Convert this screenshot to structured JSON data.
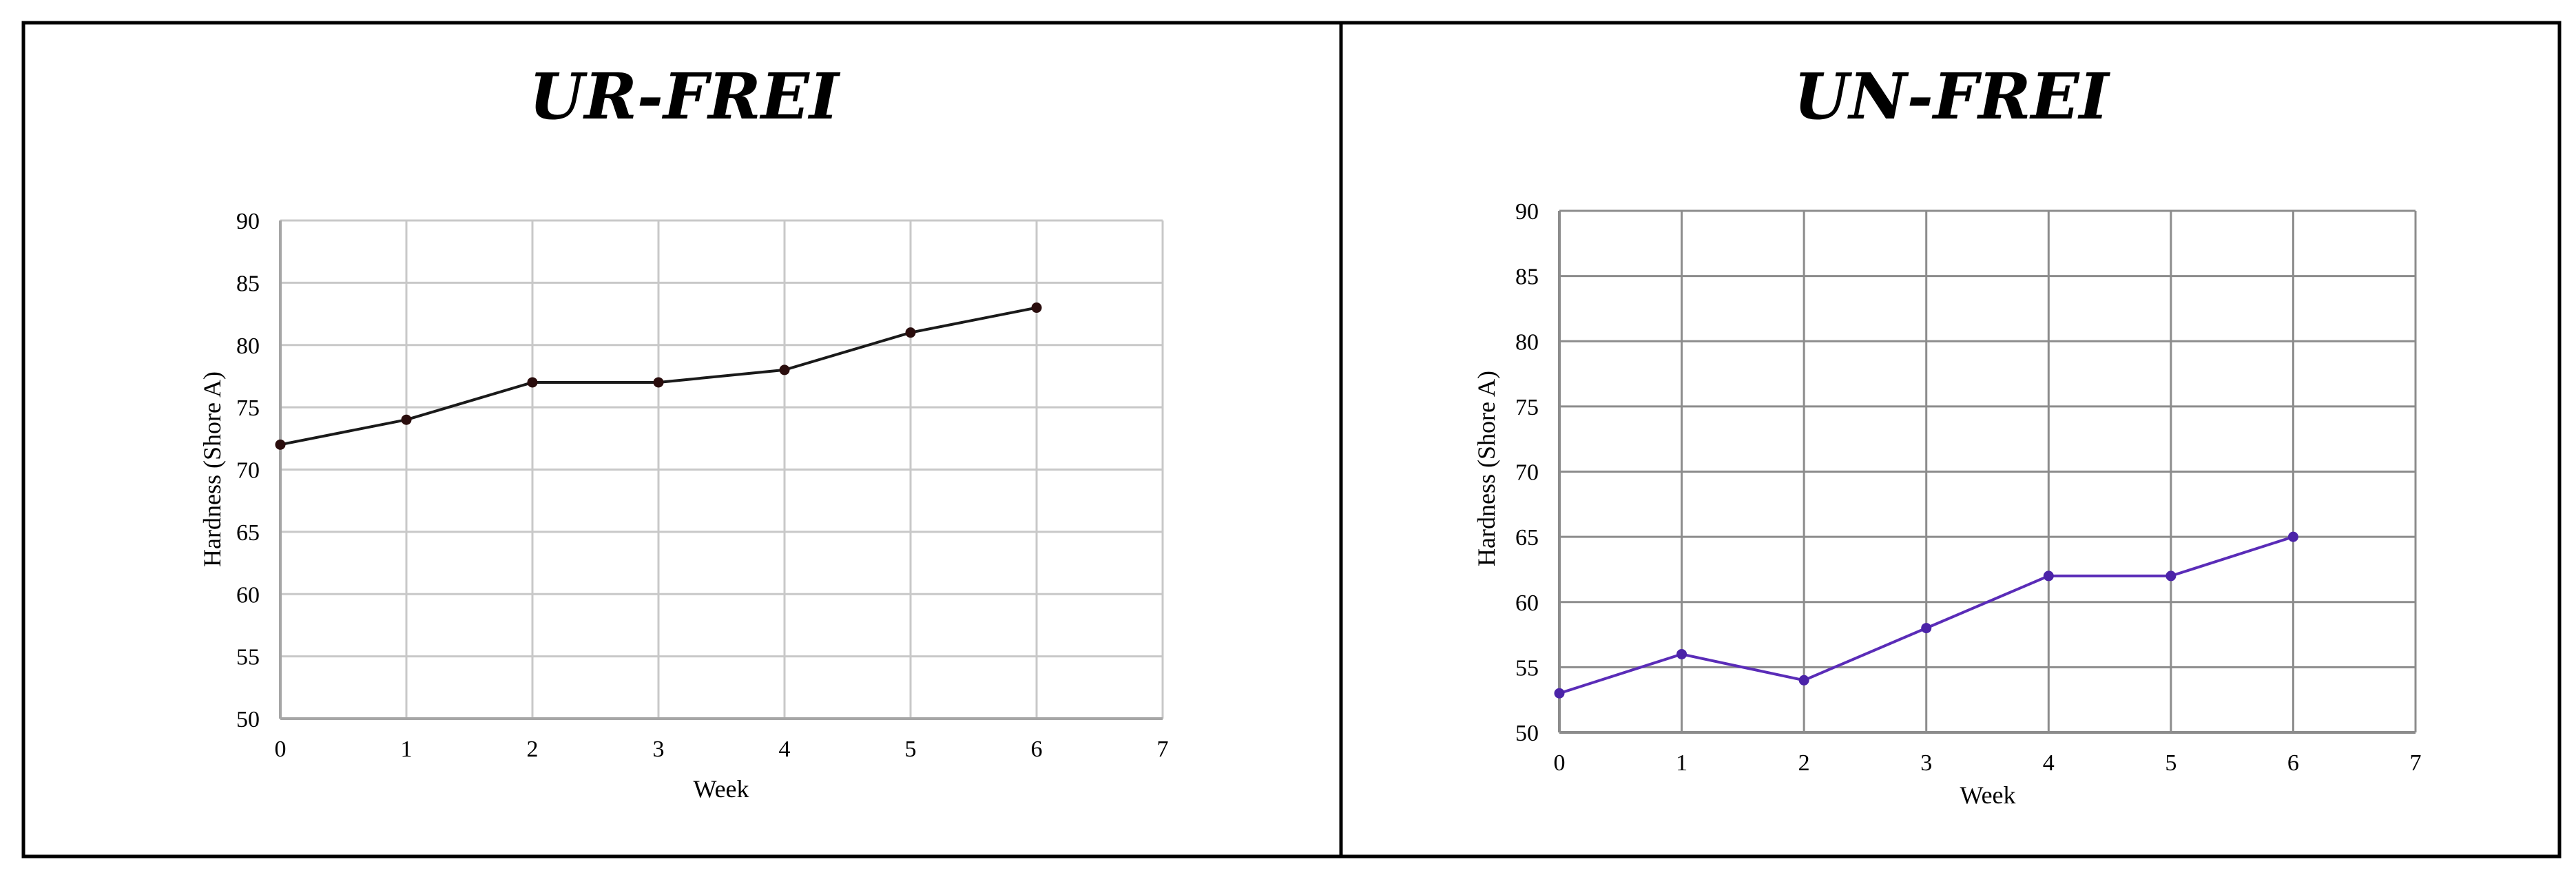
{
  "figure": {
    "panels": [
      {
        "title": "UR-FREI",
        "line_color": "#1a1a1a",
        "point_color": "#2a0d0d",
        "grid_color": "#c8c8c8",
        "axis_color": "#a6a6a6"
      },
      {
        "title": "UN-FREI",
        "line_color": "#5a2cb8",
        "point_color": "#4b23a8",
        "grid_color": "#8c8c8c",
        "axis_color": "#8c8c8c"
      }
    ]
  },
  "chart_data": [
    {
      "type": "line",
      "title": "UR-FREI",
      "xlabel": "Week",
      "ylabel": "Hardness (Shore A)",
      "xlim": [
        0,
        7
      ],
      "ylim": [
        50,
        90
      ],
      "xticks": [
        "0",
        "1",
        "2",
        "3",
        "4",
        "5",
        "6",
        "7"
      ],
      "yticks": [
        "50",
        "55",
        "60",
        "65",
        "70",
        "75",
        "80",
        "85",
        "90"
      ],
      "grid": true,
      "x": [
        0,
        1,
        2,
        3,
        4,
        5,
        6
      ],
      "series": [
        {
          "values": [
            72,
            74,
            77,
            77,
            78,
            81,
            83
          ]
        }
      ]
    },
    {
      "type": "line",
      "title": "UN-FREI",
      "xlabel": "Week",
      "ylabel": "Hardness (Shore A)",
      "xlim": [
        0,
        7
      ],
      "ylim": [
        50,
        90
      ],
      "xticks": [
        "0",
        "1",
        "2",
        "3",
        "4",
        "5",
        "6",
        "7"
      ],
      "yticks": [
        "50",
        "55",
        "60",
        "65",
        "70",
        "75",
        "80",
        "85",
        "90"
      ],
      "grid": true,
      "x": [
        0,
        1,
        2,
        3,
        4,
        5,
        6
      ],
      "series": [
        {
          "values": [
            53,
            56,
            54,
            58,
            62,
            62,
            65
          ]
        }
      ]
    }
  ]
}
